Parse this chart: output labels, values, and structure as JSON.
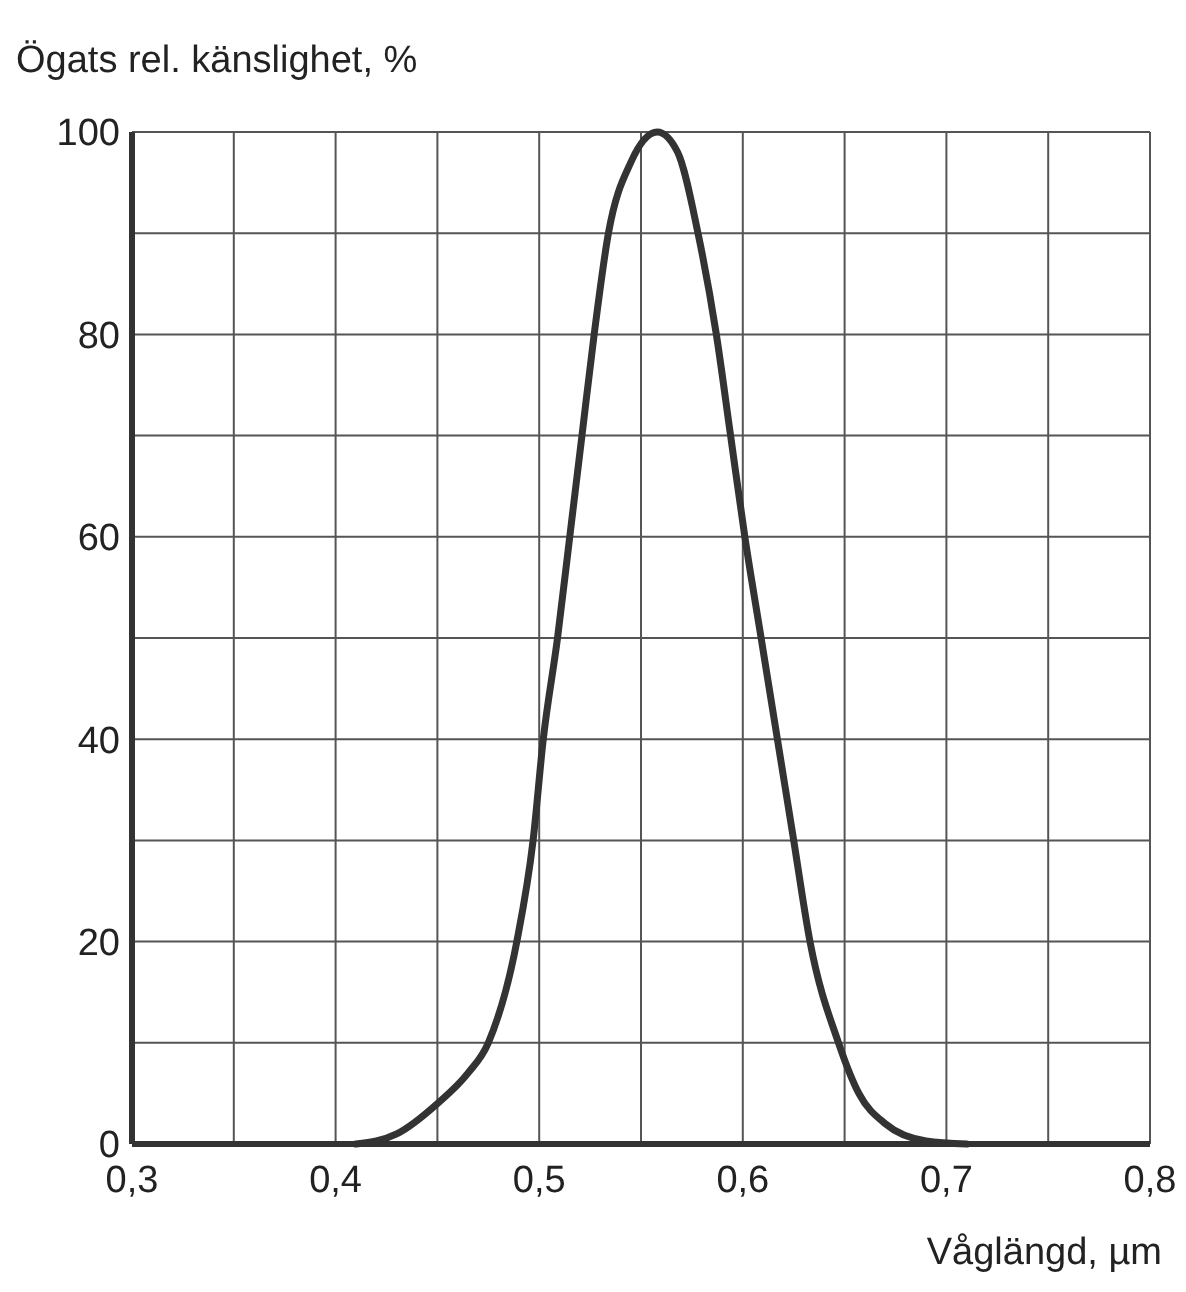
{
  "chart_data": {
    "type": "line",
    "xlabel": "Våglängd, µm",
    "ylabel": "Ögats rel. känslighet, %",
    "x": [
      0.41,
      0.43,
      0.45,
      0.465,
      0.475,
      0.489,
      0.497,
      0.502,
      0.509,
      0.515,
      0.521,
      0.527,
      0.534,
      0.545,
      0.558,
      0.568,
      0.578,
      0.587,
      0.594,
      0.601,
      0.609,
      0.617,
      0.625,
      0.633,
      0.647,
      0.657,
      0.67,
      0.69,
      0.71
    ],
    "series": [
      {
        "color": "#333333",
        "values": [
          0,
          1,
          4,
          7,
          10,
          20,
          30,
          40,
          50,
          60,
          70,
          80,
          90,
          97,
          100,
          98,
          90,
          80,
          70,
          60,
          50,
          40,
          30,
          20,
          10,
          5,
          2,
          0.3,
          0
        ]
      }
    ],
    "xlim": [
      0.3,
      0.8
    ],
    "xticks": [
      {
        "value": 0.3,
        "label": "0,3"
      },
      {
        "value": 0.35,
        "label": null
      },
      {
        "value": 0.4,
        "label": "0,4"
      },
      {
        "value": 0.45,
        "label": null
      },
      {
        "value": 0.5,
        "label": "0,5"
      },
      {
        "value": 0.55,
        "label": null
      },
      {
        "value": 0.6,
        "label": "0,6"
      },
      {
        "value": 0.65,
        "label": null
      },
      {
        "value": 0.7,
        "label": "0,7"
      },
      {
        "value": 0.75,
        "label": null
      },
      {
        "value": 0.8,
        "label": "0,8"
      }
    ],
    "ylim": [
      0,
      100
    ],
    "yticks": [
      0,
      {
        "value": 10,
        "label": null
      },
      20,
      {
        "value": 30,
        "label": null
      },
      40,
      {
        "value": 50,
        "label": null
      },
      60,
      {
        "value": 70,
        "label": null
      },
      80,
      {
        "value": 90,
        "label": null
      },
      100
    ],
    "grid": true,
    "marker": "none",
    "line_style": "solid"
  }
}
